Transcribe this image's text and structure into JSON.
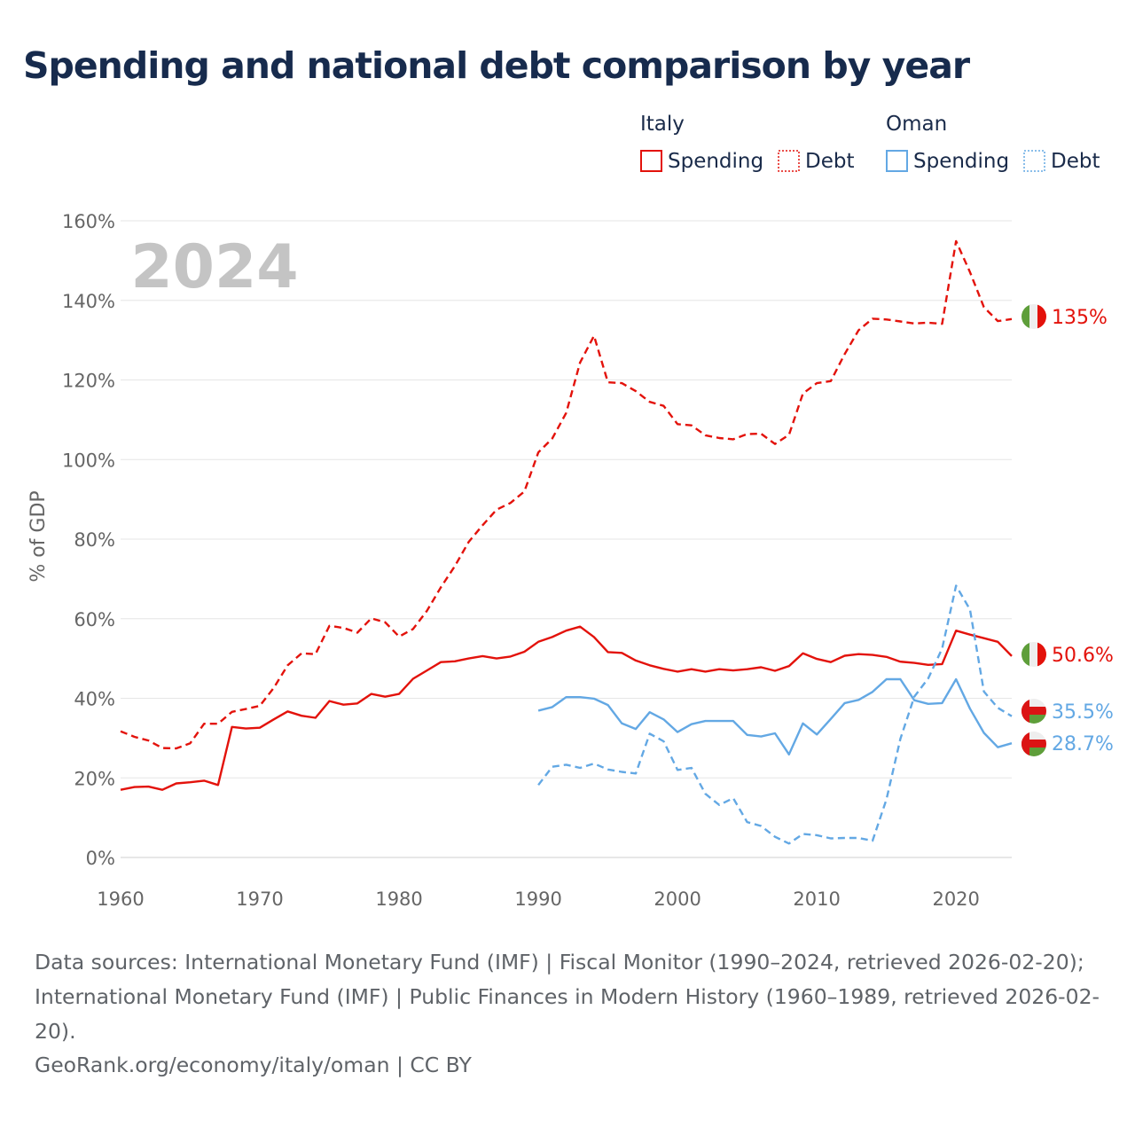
{
  "title": "Spending and national debt comparison by year",
  "legend": {
    "groups": [
      {
        "country": "Italy",
        "color": "#e3120b",
        "items": [
          "Spending",
          "Debt"
        ]
      },
      {
        "country": "Oman",
        "color": "#63a8e4",
        "items": [
          "Spending",
          "Debt"
        ]
      }
    ]
  },
  "chart_data": {
    "type": "line",
    "title": "Spending and national debt comparison by year",
    "ylabel": "% of GDP",
    "xlabel": "",
    "xlim": [
      1960,
      2024
    ],
    "ylim": [
      0,
      160
    ],
    "x_ticks": [
      1960,
      1970,
      1980,
      1990,
      2000,
      2010,
      2020
    ],
    "x_tick_labels": [
      "1960",
      "1970",
      "1980",
      "1990",
      "2000",
      "2010",
      "2020"
    ],
    "y_ticks": [
      0,
      20,
      40,
      60,
      80,
      100,
      120,
      140,
      160
    ],
    "y_tick_labels": [
      "0%",
      "20%",
      "40%",
      "60%",
      "80%",
      "100%",
      "120%",
      "140%",
      "160%"
    ],
    "year_overlay": "2024",
    "series": [
      {
        "name": "Italy Spending",
        "country": "Italy",
        "kind": "spending",
        "color": "#e3120b",
        "dash": "solid",
        "end_label": "50.6%",
        "x": [
          1960,
          1961,
          1962,
          1963,
          1964,
          1965,
          1966,
          1967,
          1968,
          1969,
          1970,
          1971,
          1972,
          1973,
          1974,
          1975,
          1976,
          1977,
          1978,
          1979,
          1980,
          1981,
          1982,
          1983,
          1984,
          1985,
          1986,
          1987,
          1988,
          1989,
          1990,
          1991,
          1992,
          1993,
          1994,
          1995,
          1996,
          1997,
          1998,
          1999,
          2000,
          2001,
          2002,
          2003,
          2004,
          2005,
          2006,
          2007,
          2008,
          2009,
          2010,
          2011,
          2012,
          2013,
          2014,
          2015,
          2016,
          2017,
          2018,
          2019,
          2020,
          2021,
          2022,
          2023,
          2024
        ],
        "values": [
          17,
          17.7,
          17.8,
          17,
          18.6,
          18.9,
          19.3,
          18.2,
          32.8,
          32.4,
          32.6,
          34.7,
          36.7,
          35.6,
          35.1,
          39.3,
          38.4,
          38.7,
          41.1,
          40.4,
          41.1,
          44.9,
          47,
          49.1,
          49.3,
          50,
          50.6,
          50,
          50.5,
          51.7,
          54.2,
          55.4,
          57,
          58,
          55.4,
          51.6,
          51.4,
          49.5,
          48.3,
          47.4,
          46.7,
          47.3,
          46.7,
          47.3,
          47,
          47.3,
          47.8,
          46.9,
          48.1,
          51.3,
          49.9,
          49.1,
          50.7,
          51.1,
          50.9,
          50.4,
          49.2,
          48.9,
          48.4,
          48.6,
          57,
          56,
          55.1,
          54.2,
          50.6
        ]
      },
      {
        "name": "Italy Debt",
        "country": "Italy",
        "kind": "debt",
        "color": "#e3120b",
        "dash": "dashed",
        "end_label": "135%",
        "x": [
          1960,
          1961,
          1962,
          1963,
          1964,
          1965,
          1966,
          1967,
          1968,
          1969,
          1970,
          1971,
          1972,
          1973,
          1974,
          1975,
          1976,
          1977,
          1978,
          1979,
          1980,
          1981,
          1982,
          1983,
          1984,
          1985,
          1986,
          1987,
          1988,
          1989,
          1990,
          1991,
          1992,
          1993,
          1994,
          1995,
          1996,
          1997,
          1998,
          1999,
          2000,
          2001,
          2002,
          2003,
          2004,
          2005,
          2006,
          2007,
          2008,
          2009,
          2010,
          2011,
          2012,
          2013,
          2014,
          2015,
          2016,
          2017,
          2018,
          2019,
          2020,
          2021,
          2022,
          2023,
          2024
        ],
        "values": [
          31.7,
          30.3,
          29.4,
          27.5,
          27.4,
          28.7,
          33.6,
          33.6,
          36.6,
          37.3,
          38.1,
          42.6,
          48.3,
          51.3,
          51.1,
          58.2,
          57.7,
          56.5,
          60.1,
          59.1,
          55.5,
          57.4,
          62,
          67.9,
          73.2,
          79.3,
          83.5,
          87.4,
          89.1,
          92,
          101.8,
          105.3,
          111.7,
          124.4,
          131.1,
          119.4,
          119.2,
          117.2,
          114.5,
          113.5,
          108.9,
          108.6,
          106.1,
          105.4,
          105.1,
          106.4,
          106.5,
          103.9,
          106.2,
          116.6,
          119.2,
          119.7,
          126.5,
          132.5,
          135.4,
          135.2,
          134.7,
          134.2,
          134.4,
          134.1,
          154.9,
          147.1,
          138.3,
          134.8,
          135.3
        ]
      },
      {
        "name": "Oman Spending",
        "country": "Oman",
        "kind": "spending",
        "color": "#63a8e4",
        "dash": "solid",
        "end_label": "28.7%",
        "x": [
          1990,
          1991,
          1992,
          1993,
          1994,
          1995,
          1996,
          1997,
          1998,
          1999,
          2000,
          2001,
          2002,
          2003,
          2004,
          2005,
          2006,
          2007,
          2008,
          2009,
          2010,
          2011,
          2012,
          2013,
          2014,
          2015,
          2016,
          2017,
          2018,
          2019,
          2020,
          2021,
          2022,
          2023,
          2024
        ],
        "values": [
          36.9,
          37.8,
          40.3,
          40.3,
          39.9,
          38.3,
          33.7,
          32.3,
          36.5,
          34.7,
          31.5,
          33.5,
          34.3,
          34.3,
          34.3,
          30.8,
          30.4,
          31.2,
          25.9,
          33.7,
          30.9,
          34.8,
          38.8,
          39.6,
          41.6,
          44.8,
          44.8,
          39.5,
          38.6,
          38.8,
          44.8,
          37.4,
          31.3,
          27.7,
          28.7
        ]
      },
      {
        "name": "Oman Debt",
        "country": "Oman",
        "kind": "debt",
        "color": "#63a8e4",
        "dash": "dashed",
        "end_label": "35.5%",
        "x": [
          1990,
          1991,
          1992,
          1993,
          1994,
          1995,
          1996,
          1997,
          1998,
          1999,
          2000,
          2001,
          2002,
          2003,
          2004,
          2005,
          2006,
          2007,
          2008,
          2009,
          2010,
          2011,
          2012,
          2013,
          2014,
          2015,
          2016,
          2017,
          2018,
          2019,
          2020,
          2021,
          2022,
          2023,
          2024
        ],
        "values": [
          18.2,
          22.8,
          23.3,
          22.5,
          23.6,
          22.1,
          21.5,
          21.1,
          31.1,
          29.2,
          22,
          22.5,
          16,
          13.2,
          14.9,
          8.9,
          7.9,
          5.2,
          3.5,
          5.9,
          5.6,
          4.8,
          4.9,
          4.9,
          4.2,
          14.6,
          29.8,
          40.4,
          45,
          52.5,
          68.3,
          62.3,
          41.7,
          37.6,
          35.5
        ]
      }
    ]
  },
  "footer": {
    "sources": "Data sources: International Monetary Fund (IMF) | Fiscal Monitor (1990–2024, retrieved 2026-02-20); International Monetary Fund (IMF) | Public Finances in Modern History (1960–1989, retrieved 2026-02-20).",
    "credit": "GeoRank.org/economy/italy/oman | CC BY"
  }
}
